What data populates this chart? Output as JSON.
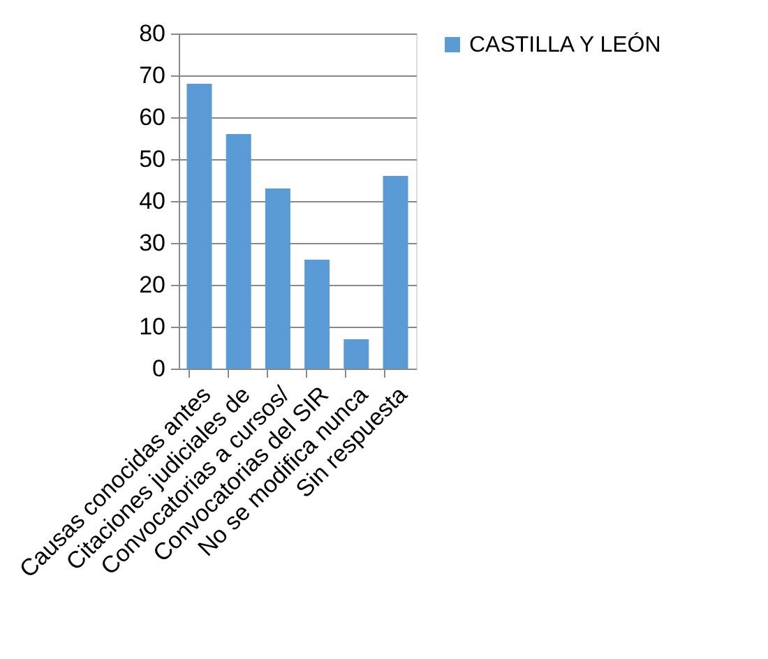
{
  "chart_data": {
    "type": "bar",
    "categories": [
      "Causas conocidas antes",
      "Citaciones judiciales de",
      "Convocatorias a cursos/",
      "Convocatorias del SIR",
      "No se modifica nunca",
      "Sin respuesta"
    ],
    "series": [
      {
        "name": "CASTILLA Y LEÓN",
        "color": "#5b9bd5",
        "values": [
          68,
          56,
          43,
          26,
          7,
          46
        ]
      }
    ],
    "ylim": [
      0,
      80
    ],
    "yticks": [
      0,
      10,
      20,
      30,
      40,
      50,
      60,
      70,
      80
    ],
    "grid": "y",
    "legend": "right"
  }
}
